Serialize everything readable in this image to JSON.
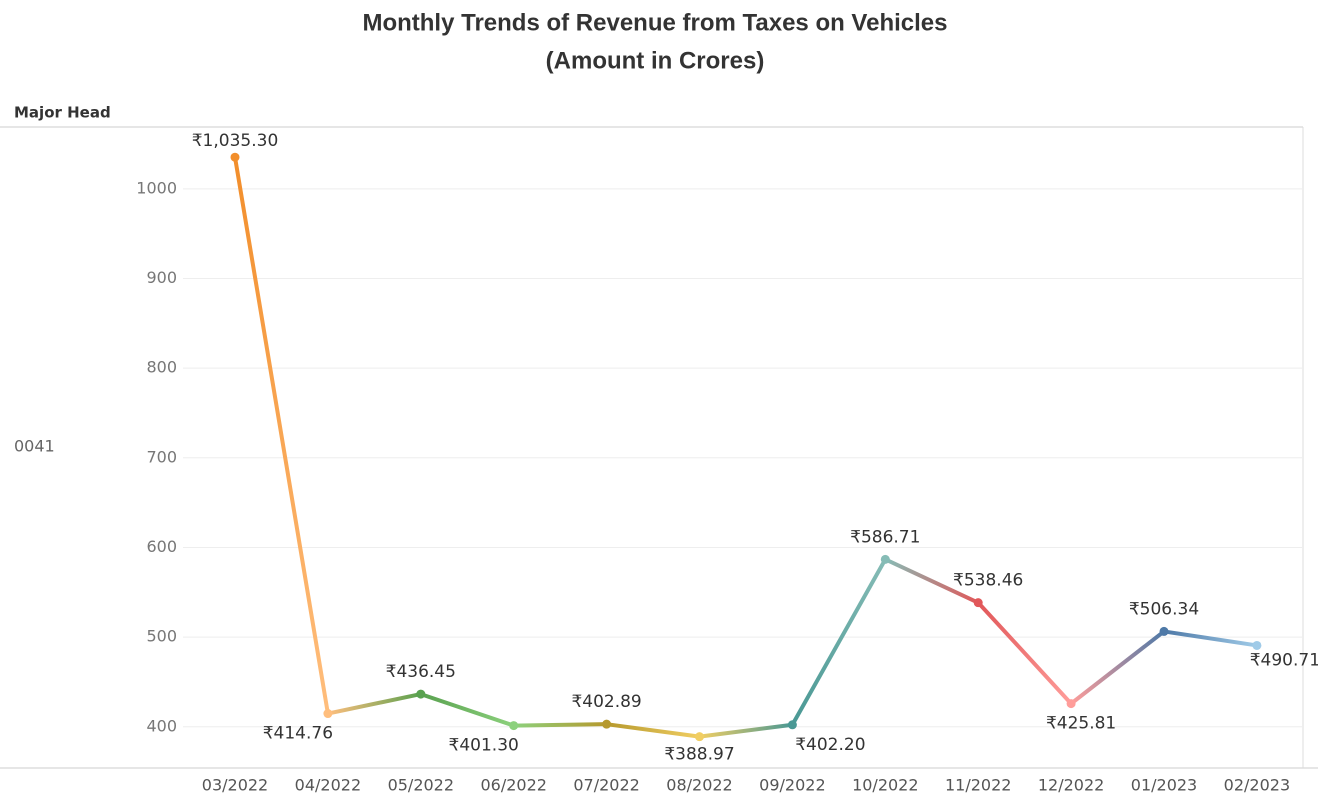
{
  "chart_data": {
    "type": "line",
    "title": "Monthly Trends of Revenue from Taxes on Vehicles",
    "subtitle": "(Amount in Crores)",
    "row_header": "Major Head",
    "row_label": "0041",
    "categories": [
      "03/2022",
      "04/2022",
      "05/2022",
      "06/2022",
      "07/2022",
      "08/2022",
      "09/2022",
      "10/2022",
      "11/2022",
      "12/2022",
      "01/2023",
      "02/2023"
    ],
    "values": [
      1035.3,
      414.76,
      436.45,
      401.3,
      402.89,
      388.97,
      402.2,
      586.71,
      538.46,
      425.81,
      506.34,
      490.71
    ],
    "value_labels": [
      "₹1,035.30",
      "₹414.76",
      "₹436.45",
      "₹401.30",
      "₹402.89",
      "₹388.97",
      "₹402.20",
      "₹586.71",
      "₹538.46",
      "₹425.81",
      "₹506.34",
      "₹490.71"
    ],
    "colors": [
      "#f28e2b",
      "#ffbe7d",
      "#59a14f",
      "#8cd17d",
      "#b6992d",
      "#f1ce63",
      "#499894",
      "#86bcb6",
      "#e15759",
      "#ff9d9a",
      "#4e79a7",
      "#a0cbe8"
    ],
    "ylim": [
      354,
      1069
    ],
    "yticks": [
      400,
      500,
      600,
      700,
      800,
      900,
      1000
    ],
    "grid": true
  }
}
